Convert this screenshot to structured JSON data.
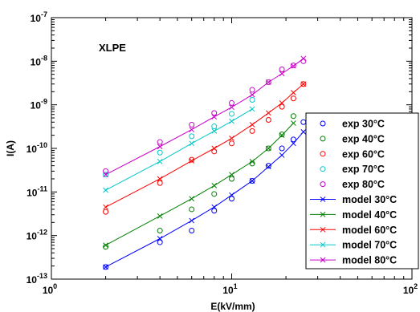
{
  "chart_data": {
    "type": "scatter",
    "xlabel": "E(kV/mm)",
    "ylabel": "I(A)",
    "x_scale": "log",
    "y_scale": "log",
    "xlim": [
      1,
      100
    ],
    "ylim": [
      1e-13,
      1e-07
    ],
    "x_ticks": [
      {
        "base": "10",
        "exp": "0"
      },
      {
        "base": "10",
        "exp": "1"
      },
      {
        "base": "10",
        "exp": "2"
      }
    ],
    "y_ticks": [
      {
        "base": "10",
        "exp": "-13"
      },
      {
        "base": "10",
        "exp": "-12"
      },
      {
        "base": "10",
        "exp": "-11"
      },
      {
        "base": "10",
        "exp": "-10"
      },
      {
        "base": "10",
        "exp": "-9"
      },
      {
        "base": "10",
        "exp": "-8"
      },
      {
        "base": "10",
        "exp": "-7"
      }
    ],
    "annotation": "XLPE",
    "legend_position": "lower-right",
    "series": [
      {
        "name": "exp 30°C",
        "kind": "exp",
        "color": "#0000ff",
        "x": [
          2,
          4,
          6,
          8,
          10,
          13,
          16,
          19,
          22,
          25
        ],
        "y": [
          1.9e-13,
          7e-13,
          1.3e-12,
          3.7e-12,
          7e-12,
          1.8e-11,
          4e-11,
          1e-10,
          1.6e-10,
          4e-10
        ]
      },
      {
        "name": "exp 40°C",
        "kind": "exp",
        "color": "#008000",
        "x": [
          2,
          4,
          6,
          8,
          10,
          13,
          16,
          19,
          22
        ],
        "y": [
          5.5e-13,
          1.3e-12,
          4e-12,
          9e-12,
          2e-11,
          4.5e-11,
          1e-10,
          2.1e-10,
          5.5e-10
        ]
      },
      {
        "name": "exp 60°C",
        "kind": "exp",
        "color": "#ff0000",
        "x": [
          2,
          4,
          6,
          8,
          10,
          13,
          16,
          19,
          22,
          25
        ],
        "y": [
          3.5e-12,
          1.6e-11,
          5.5e-11,
          8.5e-11,
          1.3e-10,
          2.5e-10,
          4.5e-10,
          9e-10,
          1.4e-09,
          3e-09
        ]
      },
      {
        "name": "exp 70°C",
        "kind": "exp",
        "color": "#00c8c8",
        "x": [
          2,
          4,
          6,
          8,
          10,
          13
        ],
        "y": [
          2.5e-11,
          8e-11,
          1.9e-10,
          3.2e-10,
          6.2e-10,
          1.3e-09
        ]
      },
      {
        "name": "exp 80°C",
        "kind": "exp",
        "color": "#c800c8",
        "x": [
          2,
          4,
          6,
          8,
          10,
          13,
          16,
          19,
          22,
          25
        ],
        "y": [
          3e-11,
          1.4e-10,
          3.5e-10,
          6.5e-10,
          1.1e-09,
          2.2e-09,
          3.3e-09,
          6.5e-09,
          8e-09,
          1e-08
        ]
      },
      {
        "name": "model 30°C",
        "kind": "model",
        "color": "#0000ff",
        "x": [
          2,
          4,
          6,
          8,
          10,
          13,
          16,
          19,
          22,
          25
        ],
        "y": [
          1.9e-13,
          8.5e-13,
          2.2e-12,
          4.5e-12,
          8.5e-12,
          1.8e-11,
          3.8e-11,
          7e-11,
          1.3e-10,
          2.4e-10
        ]
      },
      {
        "name": "model 40°C",
        "kind": "model",
        "color": "#008000",
        "x": [
          2,
          4,
          6,
          8,
          10,
          13,
          16,
          19,
          22
        ],
        "y": [
          6e-13,
          2.8e-12,
          7e-12,
          1.4e-11,
          2.5e-11,
          5e-11,
          1e-10,
          2e-10,
          3.8e-10
        ]
      },
      {
        "name": "model 60°C",
        "kind": "model",
        "color": "#ff0000",
        "x": [
          2,
          4,
          6,
          8,
          10,
          13,
          16,
          19,
          22,
          25
        ],
        "y": [
          4.5e-12,
          2e-11,
          5.2e-11,
          1e-10,
          1.7e-10,
          3.5e-10,
          6.5e-10,
          1.1e-09,
          1.9e-09,
          3e-09
        ]
      },
      {
        "name": "model 70°C",
        "kind": "model",
        "color": "#00c8c8",
        "x": [
          2,
          4,
          6,
          8,
          10,
          13
        ],
        "y": [
          1.1e-11,
          5e-11,
          1.3e-10,
          2.5e-10,
          4.2e-10,
          8e-10
        ]
      },
      {
        "name": "model 80°C",
        "kind": "model",
        "color": "#c800c8",
        "x": [
          2,
          4,
          6,
          8,
          10,
          13,
          16,
          19,
          22,
          25
        ],
        "y": [
          2.5e-11,
          1.1e-10,
          2.7e-10,
          5.3e-10,
          8.8e-10,
          1.7e-09,
          3.3e-09,
          5.2e-09,
          7.8e-09,
          1.15e-08
        ]
      }
    ]
  }
}
